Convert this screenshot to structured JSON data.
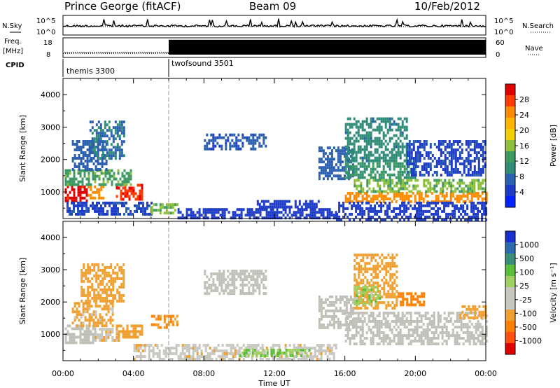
{
  "header": {
    "station": "Prince George (fitACF)",
    "beam": "Beam 09",
    "date": "10/Feb/2012"
  },
  "noise_panel": {
    "left_label": "N.Sky",
    "right_label": "N.Search",
    "left_ticks": [
      "10^5",
      "10^0"
    ],
    "right_ticks": [
      "10^5",
      "10^0"
    ]
  },
  "freq_panel": {
    "left_label_top": "Freq.",
    "left_label_bottom": "[MHz]",
    "left_ticks": [
      "18",
      "8"
    ],
    "right_label": "Nave",
    "right_ticks": [
      "60",
      "0"
    ],
    "nave_level": 54,
    "freq_level": 10
  },
  "cpid_panel": {
    "label": "CPID",
    "modes": [
      {
        "name": "themis 3300",
        "start_hour": 0,
        "end_hour": 6
      },
      {
        "name": "twofsound 3501",
        "start_hour": 6,
        "end_hour": 24
      }
    ]
  },
  "power_colorbar": {
    "title": "Power [dB]",
    "ticks": [
      "28",
      "24",
      "20",
      "16",
      "12",
      "8",
      "4"
    ],
    "colors": [
      "#e00000",
      "#ff3a00",
      "#ff8c00",
      "#ffb400",
      "#f0d000",
      "#8ec03c",
      "#3c9a62",
      "#2f8c78",
      "#2b5fb0",
      "#1e3cc8",
      "#0022ff"
    ]
  },
  "velocity_colorbar": {
    "title": "Velocity [m s⁻¹]",
    "ticks": [
      "1000",
      "500",
      "100",
      "25",
      "-25",
      "-100",
      "-500",
      "-1000"
    ],
    "colors": [
      "#1a2fd0",
      "#2c6bb0",
      "#3a8f7a",
      "#5cbf3c",
      "#a0d060",
      "#c8c8c0",
      "#c8c8c0",
      "#f0a030",
      "#ff8000",
      "#ff5010",
      "#e00000"
    ]
  },
  "ground_scatter_color": "#c0c0b8",
  "chart_data": {
    "type": "heatmap",
    "xlabel": "Time UT",
    "x_ticks": [
      "00:00",
      "04:00",
      "08:00",
      "12:00",
      "16:00",
      "20:00",
      "00:00"
    ],
    "xlim_hours": [
      0,
      24
    ],
    "ylabel": "Slant Range [km]",
    "y_ticks": [
      1000,
      2000,
      3000,
      4000
    ],
    "ylim": [
      180,
      4500
    ],
    "mode_change_hour": 6,
    "panels": [
      {
        "name": "Power [dB]",
        "clim": [
          0,
          30
        ],
        "regions": [
          {
            "t": [
              0.1,
              1.4
            ],
            "r": [
              700,
              1200
            ],
            "v": 28
          },
          {
            "t": [
              1.4,
              2.3
            ],
            "r": [
              800,
              1200
            ],
            "v": 23
          },
          {
            "t": [
              3.0,
              4.5
            ],
            "r": [
              750,
              1250
            ],
            "v": 27
          },
          {
            "t": [
              0.1,
              3.8
            ],
            "r": [
              1200,
              1700
            ],
            "v": 13
          },
          {
            "t": [
              0.5,
              2.5
            ],
            "r": [
              1700,
              2600
            ],
            "v": 7
          },
          {
            "t": [
              1.5,
              3.5
            ],
            "r": [
              2000,
              3200
            ],
            "v": 8
          },
          {
            "t": [
              0.2,
              5.0
            ],
            "r": [
              300,
              700
            ],
            "v": 5
          },
          {
            "t": [
              5.0,
              6.5
            ],
            "r": [
              350,
              650
            ],
            "v": 14
          },
          {
            "t": [
              6.5,
              15.5
            ],
            "r": [
              180,
              500
            ],
            "v": 4
          },
          {
            "t": [
              11.0,
              14.5
            ],
            "r": [
              550,
              750
            ],
            "v": 4
          },
          {
            "t": [
              8.0,
              11.5
            ],
            "r": [
              2300,
              2800
            ],
            "v": 6
          },
          {
            "t": [
              14.5,
              16.5
            ],
            "r": [
              1400,
              2400
            ],
            "v": 7
          },
          {
            "t": [
              16.0,
              24.0
            ],
            "r": [
              700,
              1000
            ],
            "v": 23
          },
          {
            "t": [
              16.5,
              24.0
            ],
            "r": [
              1000,
              1400
            ],
            "v": 14
          },
          {
            "t": [
              16.0,
              20.0
            ],
            "r": [
              1400,
              2000
            ],
            "v": 11
          },
          {
            "t": [
              16.0,
              19.5
            ],
            "r": [
              2000,
              3300
            ],
            "v": 9
          },
          {
            "t": [
              19.5,
              24.0
            ],
            "r": [
              1500,
              2600
            ],
            "v": 5
          },
          {
            "t": [
              15.5,
              24.0
            ],
            "r": [
              180,
              700
            ],
            "v": 4
          }
        ]
      },
      {
        "name": "Velocity [m s⁻¹]",
        "clim": [
          -1000,
          1000
        ],
        "regions": [
          {
            "t": [
              0.1,
              1.8
            ],
            "r": [
              700,
              1300
            ],
            "v": "gs"
          },
          {
            "t": [
              1.8,
              3.2
            ],
            "r": [
              800,
              1200
            ],
            "v": -80
          },
          {
            "t": [
              3.0,
              4.5
            ],
            "r": [
              900,
              1300
            ],
            "v": -400
          },
          {
            "t": [
              0.5,
              2.8
            ],
            "r": [
              1300,
              2000
            ],
            "v": -150
          },
          {
            "t": [
              1.0,
              3.5
            ],
            "r": [
              2000,
              3200
            ],
            "v": -300
          },
          {
            "t": [
              5.0,
              6.5
            ],
            "r": [
              1200,
              1600
            ],
            "v": -500
          },
          {
            "t": [
              4.0,
              15.5
            ],
            "r": [
              250,
              700
            ],
            "v": -50
          },
          {
            "t": [
              10.0,
              14.0
            ],
            "r": [
              300,
              550
            ],
            "v": 100
          },
          {
            "t": [
              8.0,
              11.5
            ],
            "r": [
              2300,
              3000
            ],
            "v": "gs"
          },
          {
            "t": [
              14.5,
              16.5
            ],
            "r": [
              1200,
              2200
            ],
            "v": "gs"
          },
          {
            "t": [
              16.0,
              24.0
            ],
            "r": [
              700,
              1700
            ],
            "v": "gs"
          },
          {
            "t": [
              16.5,
              19.0
            ],
            "r": [
              1800,
              3500
            ],
            "v": -300
          },
          {
            "t": [
              19.0,
              20.5
            ],
            "r": [
              1900,
              2300
            ],
            "v": -700
          },
          {
            "t": [
              22.5,
              24.0
            ],
            "r": [
              1500,
              1900
            ],
            "v": -300
          },
          {
            "t": [
              16.5,
              18.0
            ],
            "r": [
              1900,
              2500
            ],
            "v": 60
          }
        ]
      }
    ]
  }
}
